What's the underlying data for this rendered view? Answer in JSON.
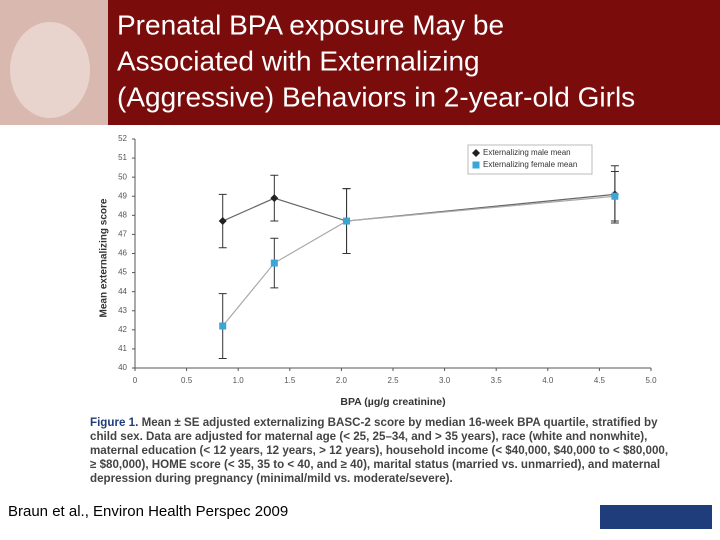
{
  "slide": {
    "title_lines": [
      "Prenatal BPA exposure May be",
      "Associated with Externalizing",
      "(Aggressive) Behaviors in 2-year-old Girls"
    ],
    "caption_label": "Figure 1.",
    "caption_text": "Mean ± SE adjusted externalizing BASC-2 score by median 16-week BPA quartile, stratified by child sex. Data are adjusted for maternal age (< 25, 25–34, and > 35 years), race (white and nonwhite), maternal education (< 12 years, 12 years, > 12 years), household income (< $40,000, $40,000 to < $80,000, ≥ $80,000), HOME score (< 35, 35 to < 40, and ≥ 40), marital status (married vs. unmarried), and maternal depression during pregnancy (minimal/mild vs. moderate/severe).",
    "citation": "Braun et al., Environ Health Perspec 2009"
  },
  "chart_data": {
    "type": "line",
    "x_label": "BPA (µg/g creatinine)",
    "y_label": "Mean externalizing score",
    "x": [
      0.85,
      1.35,
      2.05,
      4.65
    ],
    "series": [
      {
        "name": "Externalizing male mean",
        "color": "#222222",
        "marker": "diamond",
        "values": [
          47.7,
          48.9,
          47.7,
          49.1
        ],
        "errors": [
          1.4,
          1.2,
          1.7,
          1.5
        ]
      },
      {
        "name": "Externalizing female mean",
        "color": "#3aa6d8",
        "marker": "square",
        "values": [
          42.2,
          45.5,
          47.7,
          49.0
        ],
        "errors": [
          1.7,
          1.3,
          1.7,
          1.3
        ]
      }
    ],
    "xlim": [
      0,
      5.0
    ],
    "xticks": [
      0,
      0.5,
      {
        "value": 1.0,
        "label": "1.0"
      },
      1.5,
      {
        "value": 2.0,
        "label": "2.0"
      },
      2.5,
      {
        "value": 3.0,
        "label": "3.0"
      },
      3.5,
      {
        "value": 4.0,
        "label": "4.0"
      },
      4.5,
      {
        "value": 5.0,
        "label": "5.0"
      }
    ],
    "ylim": [
      40,
      52
    ],
    "yticks": [
      40,
      41,
      42,
      43,
      44,
      45,
      46,
      47,
      48,
      49,
      50,
      51,
      52
    ],
    "legend": "upper right",
    "grid": false
  }
}
